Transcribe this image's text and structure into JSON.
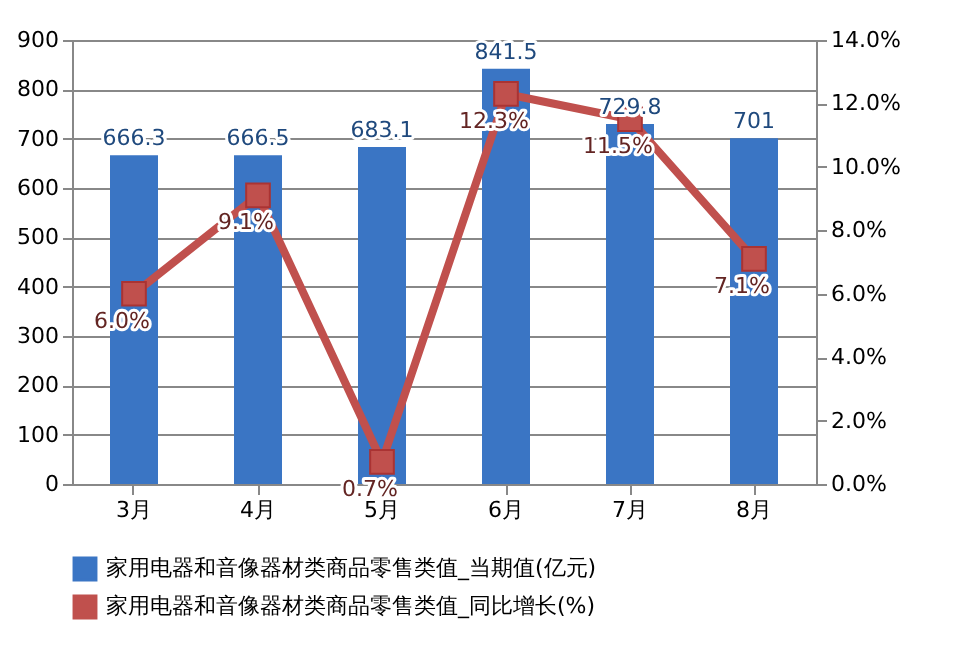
{
  "chart_data": {
    "type": "bar",
    "categories": [
      "3月",
      "4月",
      "5月",
      "6月",
      "7月",
      "8月"
    ],
    "series": [
      {
        "name": "家用电器和音像器材类商品零售类值_当期值(亿元)",
        "color": "#3a75c4",
        "values": [
          666.3,
          666.5,
          683.1,
          841.5,
          729.8,
          701
        ],
        "value_labels": [
          "666.3",
          "666.5",
          "683.1",
          "841.5",
          "729.8",
          "701"
        ]
      },
      {
        "name": "家用电器和音像器材类商品零售类值_同比增长(%)",
        "type": "line",
        "axis": "y2",
        "color": "#c0504d",
        "marker": "square",
        "values": [
          6.0,
          9.1,
          0.7,
          12.3,
          11.5,
          7.1
        ],
        "value_labels": [
          "6.0%",
          "9.1%",
          "0.7%",
          "12.3%",
          "11.5%",
          "7.1%"
        ]
      }
    ],
    "ylim": [
      0,
      900
    ],
    "yticks": [
      0,
      100,
      200,
      300,
      400,
      500,
      600,
      700,
      800,
      900
    ],
    "y2lim": [
      0,
      14
    ],
    "y2ticks": [
      {
        "value": 0,
        "label": "0.0%"
      },
      {
        "value": 2,
        "label": "2.0%"
      },
      {
        "value": 4,
        "label": "4.0%"
      },
      {
        "value": 6,
        "label": "6.0%"
      },
      {
        "value": 8,
        "label": "8.0%"
      },
      {
        "value": 10,
        "label": "10.0%"
      },
      {
        "value": 12,
        "label": "12.0%"
      },
      {
        "value": 14,
        "label": "14.0%"
      }
    ],
    "grid": "y",
    "legend": "bottom"
  }
}
